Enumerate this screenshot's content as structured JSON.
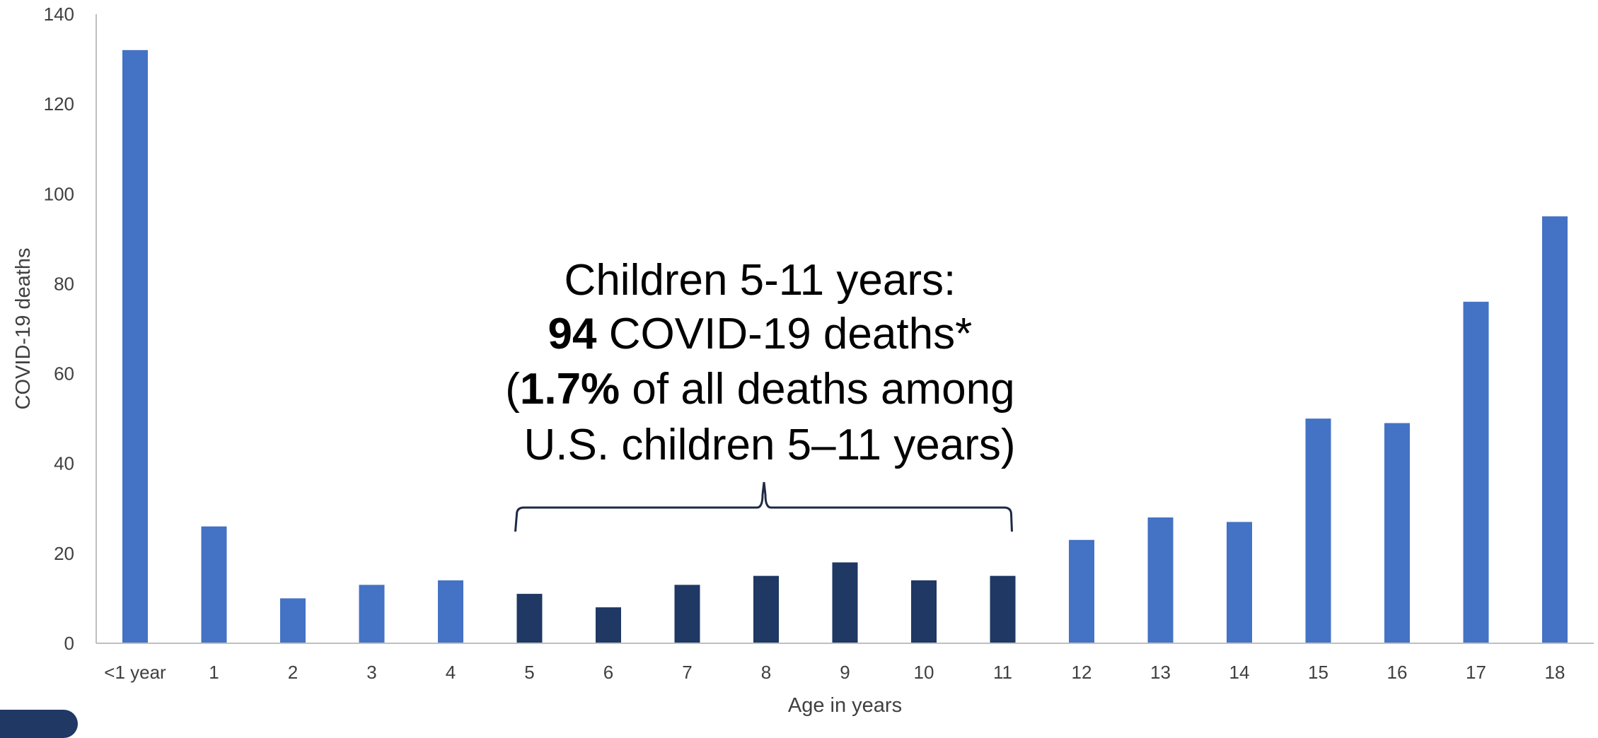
{
  "chart_data": {
    "type": "bar",
    "categories": [
      "<1 year",
      "1",
      "2",
      "3",
      "4",
      "5",
      "6",
      "7",
      "8",
      "9",
      "10",
      "11",
      "12",
      "13",
      "14",
      "15",
      "16",
      "17",
      "18"
    ],
    "values": [
      132,
      26,
      10,
      13,
      14,
      11,
      8,
      13,
      15,
      18,
      14,
      15,
      23,
      28,
      27,
      50,
      49,
      76,
      95
    ],
    "highlight_categories": [
      "5",
      "6",
      "7",
      "8",
      "9",
      "10",
      "11"
    ],
    "xlabel": "Age in years",
    "ylabel": "COVID-19 deaths",
    "ylim": [
      0,
      140
    ],
    "yticks": [
      0,
      20,
      40,
      60,
      80,
      100,
      120,
      140
    ],
    "grid": false,
    "colors": {
      "bar": "#4472c4",
      "highlight": "#1f3864",
      "axis": "#bfbfbf"
    },
    "annotation": {
      "line1": "Children 5-11 years:",
      "line2_bold": "94",
      "line2_rest": " COVID-19 deaths*",
      "line3_open": "(",
      "line3_bold": "1.7%",
      "line3_rest": " of all deaths among",
      "line4": "U.S. children 5–11 years)",
      "bracket_from": "5",
      "bracket_to": "11"
    }
  }
}
